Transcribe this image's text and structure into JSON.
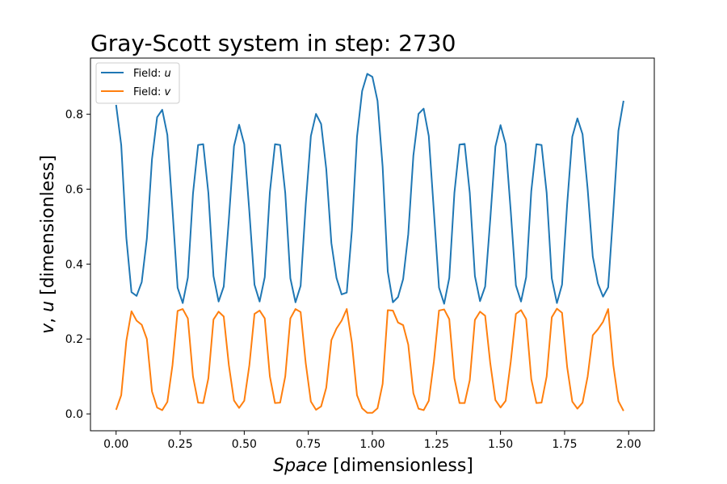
{
  "chart_data": {
    "type": "line",
    "title": "Gray-Scott system in step: 2730",
    "xlabel": {
      "italic": "Space",
      "rest": " [dimensionless]"
    },
    "ylabel": {
      "v": "v",
      "sep": ", ",
      "u": "u",
      "rest": " [dimensionless]"
    },
    "xlim": [
      -0.1,
      2.1
    ],
    "ylim": [
      -0.045,
      0.95
    ],
    "xticks": [
      "0.00",
      "0.25",
      "0.50",
      "0.75",
      "1.00",
      "1.25",
      "1.50",
      "1.75",
      "2.00"
    ],
    "yticks": [
      "0.0",
      "0.2",
      "0.4",
      "0.6",
      "0.8"
    ],
    "legend_position": "upper-left",
    "series": [
      {
        "name_prefix": "Field: ",
        "name_var": "u",
        "color": "#1f77b4",
        "points": [
          [
            0.0,
            0.825
          ],
          [
            0.02,
            0.718
          ],
          [
            0.04,
            0.47
          ],
          [
            0.06,
            0.325
          ],
          [
            0.08,
            0.315
          ],
          [
            0.1,
            0.352
          ],
          [
            0.12,
            0.468
          ],
          [
            0.14,
            0.68
          ],
          [
            0.16,
            0.792
          ],
          [
            0.18,
            0.812
          ],
          [
            0.2,
            0.745
          ],
          [
            0.22,
            0.545
          ],
          [
            0.24,
            0.337
          ],
          [
            0.26,
            0.296
          ],
          [
            0.28,
            0.364
          ],
          [
            0.3,
            0.588
          ],
          [
            0.32,
            0.718
          ],
          [
            0.34,
            0.72
          ],
          [
            0.36,
            0.59
          ],
          [
            0.38,
            0.368
          ],
          [
            0.4,
            0.3
          ],
          [
            0.42,
            0.34
          ],
          [
            0.44,
            0.52
          ],
          [
            0.46,
            0.715
          ],
          [
            0.48,
            0.772
          ],
          [
            0.5,
            0.72
          ],
          [
            0.52,
            0.54
          ],
          [
            0.54,
            0.345
          ],
          [
            0.56,
            0.3
          ],
          [
            0.58,
            0.365
          ],
          [
            0.6,
            0.592
          ],
          [
            0.62,
            0.72
          ],
          [
            0.64,
            0.718
          ],
          [
            0.66,
            0.59
          ],
          [
            0.68,
            0.362
          ],
          [
            0.7,
            0.298
          ],
          [
            0.72,
            0.342
          ],
          [
            0.74,
            0.56
          ],
          [
            0.76,
            0.742
          ],
          [
            0.78,
            0.801
          ],
          [
            0.8,
            0.774
          ],
          [
            0.82,
            0.654
          ],
          [
            0.84,
            0.456
          ],
          [
            0.86,
            0.363
          ],
          [
            0.88,
            0.319
          ],
          [
            0.9,
            0.324
          ],
          [
            0.92,
            0.49
          ],
          [
            0.94,
            0.74
          ],
          [
            0.96,
            0.862
          ],
          [
            0.98,
            0.908
          ],
          [
            1.0,
            0.9
          ],
          [
            1.02,
            0.836
          ],
          [
            1.04,
            0.66
          ],
          [
            1.06,
            0.38
          ],
          [
            1.08,
            0.298
          ],
          [
            1.1,
            0.312
          ],
          [
            1.12,
            0.36
          ],
          [
            1.14,
            0.48
          ],
          [
            1.16,
            0.69
          ],
          [
            1.18,
            0.801
          ],
          [
            1.2,
            0.815
          ],
          [
            1.22,
            0.742
          ],
          [
            1.24,
            0.54
          ],
          [
            1.26,
            0.337
          ],
          [
            1.28,
            0.294
          ],
          [
            1.3,
            0.363
          ],
          [
            1.32,
            0.59
          ],
          [
            1.34,
            0.719
          ],
          [
            1.36,
            0.721
          ],
          [
            1.38,
            0.59
          ],
          [
            1.4,
            0.368
          ],
          [
            1.42,
            0.301
          ],
          [
            1.44,
            0.34
          ],
          [
            1.46,
            0.52
          ],
          [
            1.48,
            0.714
          ],
          [
            1.5,
            0.771
          ],
          [
            1.52,
            0.72
          ],
          [
            1.54,
            0.54
          ],
          [
            1.56,
            0.343
          ],
          [
            1.58,
            0.3
          ],
          [
            1.6,
            0.365
          ],
          [
            1.62,
            0.595
          ],
          [
            1.64,
            0.72
          ],
          [
            1.66,
            0.718
          ],
          [
            1.68,
            0.59
          ],
          [
            1.7,
            0.362
          ],
          [
            1.72,
            0.296
          ],
          [
            1.74,
            0.345
          ],
          [
            1.76,
            0.56
          ],
          [
            1.78,
            0.74
          ],
          [
            1.8,
            0.789
          ],
          [
            1.82,
            0.747
          ],
          [
            1.84,
            0.6
          ],
          [
            1.86,
            0.42
          ],
          [
            1.88,
            0.348
          ],
          [
            1.9,
            0.313
          ],
          [
            1.92,
            0.338
          ],
          [
            1.94,
            0.54
          ],
          [
            1.96,
            0.756
          ],
          [
            1.98,
            0.836
          ]
        ]
      },
      {
        "name_prefix": "Field: ",
        "name_var": "v",
        "color": "#ff7f0e",
        "points": [
          [
            0.0,
            0.011
          ],
          [
            0.02,
            0.05
          ],
          [
            0.04,
            0.195
          ],
          [
            0.06,
            0.274
          ],
          [
            0.08,
            0.249
          ],
          [
            0.1,
            0.238
          ],
          [
            0.12,
            0.2
          ],
          [
            0.14,
            0.06
          ],
          [
            0.16,
            0.017
          ],
          [
            0.18,
            0.01
          ],
          [
            0.2,
            0.032
          ],
          [
            0.22,
            0.13
          ],
          [
            0.24,
            0.275
          ],
          [
            0.26,
            0.28
          ],
          [
            0.28,
            0.255
          ],
          [
            0.3,
            0.1
          ],
          [
            0.32,
            0.03
          ],
          [
            0.34,
            0.029
          ],
          [
            0.36,
            0.095
          ],
          [
            0.38,
            0.252
          ],
          [
            0.4,
            0.273
          ],
          [
            0.42,
            0.26
          ],
          [
            0.44,
            0.13
          ],
          [
            0.46,
            0.036
          ],
          [
            0.48,
            0.016
          ],
          [
            0.5,
            0.035
          ],
          [
            0.52,
            0.13
          ],
          [
            0.54,
            0.267
          ],
          [
            0.56,
            0.276
          ],
          [
            0.58,
            0.255
          ],
          [
            0.6,
            0.1
          ],
          [
            0.62,
            0.029
          ],
          [
            0.64,
            0.03
          ],
          [
            0.66,
            0.1
          ],
          [
            0.68,
            0.255
          ],
          [
            0.7,
            0.28
          ],
          [
            0.72,
            0.272
          ],
          [
            0.74,
            0.135
          ],
          [
            0.76,
            0.033
          ],
          [
            0.78,
            0.011
          ],
          [
            0.8,
            0.02
          ],
          [
            0.82,
            0.07
          ],
          [
            0.84,
            0.197
          ],
          [
            0.86,
            0.228
          ],
          [
            0.88,
            0.249
          ],
          [
            0.9,
            0.28
          ],
          [
            0.92,
            0.19
          ],
          [
            0.94,
            0.05
          ],
          [
            0.96,
            0.015
          ],
          [
            0.98,
            0.003
          ],
          [
            1.0,
            0.003
          ],
          [
            1.02,
            0.015
          ],
          [
            1.04,
            0.08
          ],
          [
            1.06,
            0.277
          ],
          [
            1.08,
            0.276
          ],
          [
            1.1,
            0.244
          ],
          [
            1.12,
            0.237
          ],
          [
            1.14,
            0.185
          ],
          [
            1.16,
            0.055
          ],
          [
            1.18,
            0.014
          ],
          [
            1.2,
            0.01
          ],
          [
            1.22,
            0.035
          ],
          [
            1.24,
            0.14
          ],
          [
            1.26,
            0.276
          ],
          [
            1.28,
            0.279
          ],
          [
            1.3,
            0.253
          ],
          [
            1.32,
            0.095
          ],
          [
            1.34,
            0.029
          ],
          [
            1.36,
            0.029
          ],
          [
            1.38,
            0.09
          ],
          [
            1.4,
            0.251
          ],
          [
            1.42,
            0.273
          ],
          [
            1.44,
            0.262
          ],
          [
            1.46,
            0.135
          ],
          [
            1.48,
            0.037
          ],
          [
            1.5,
            0.017
          ],
          [
            1.52,
            0.035
          ],
          [
            1.54,
            0.14
          ],
          [
            1.56,
            0.267
          ],
          [
            1.58,
            0.277
          ],
          [
            1.6,
            0.253
          ],
          [
            1.62,
            0.093
          ],
          [
            1.64,
            0.029
          ],
          [
            1.66,
            0.03
          ],
          [
            1.68,
            0.1
          ],
          [
            1.7,
            0.258
          ],
          [
            1.72,
            0.281
          ],
          [
            1.74,
            0.27
          ],
          [
            1.76,
            0.125
          ],
          [
            1.78,
            0.033
          ],
          [
            1.8,
            0.014
          ],
          [
            1.82,
            0.03
          ],
          [
            1.84,
            0.1
          ],
          [
            1.86,
            0.21
          ],
          [
            1.88,
            0.226
          ],
          [
            1.9,
            0.246
          ],
          [
            1.92,
            0.28
          ],
          [
            1.94,
            0.13
          ],
          [
            1.96,
            0.034
          ],
          [
            1.98,
            0.008
          ]
        ]
      }
    ]
  }
}
